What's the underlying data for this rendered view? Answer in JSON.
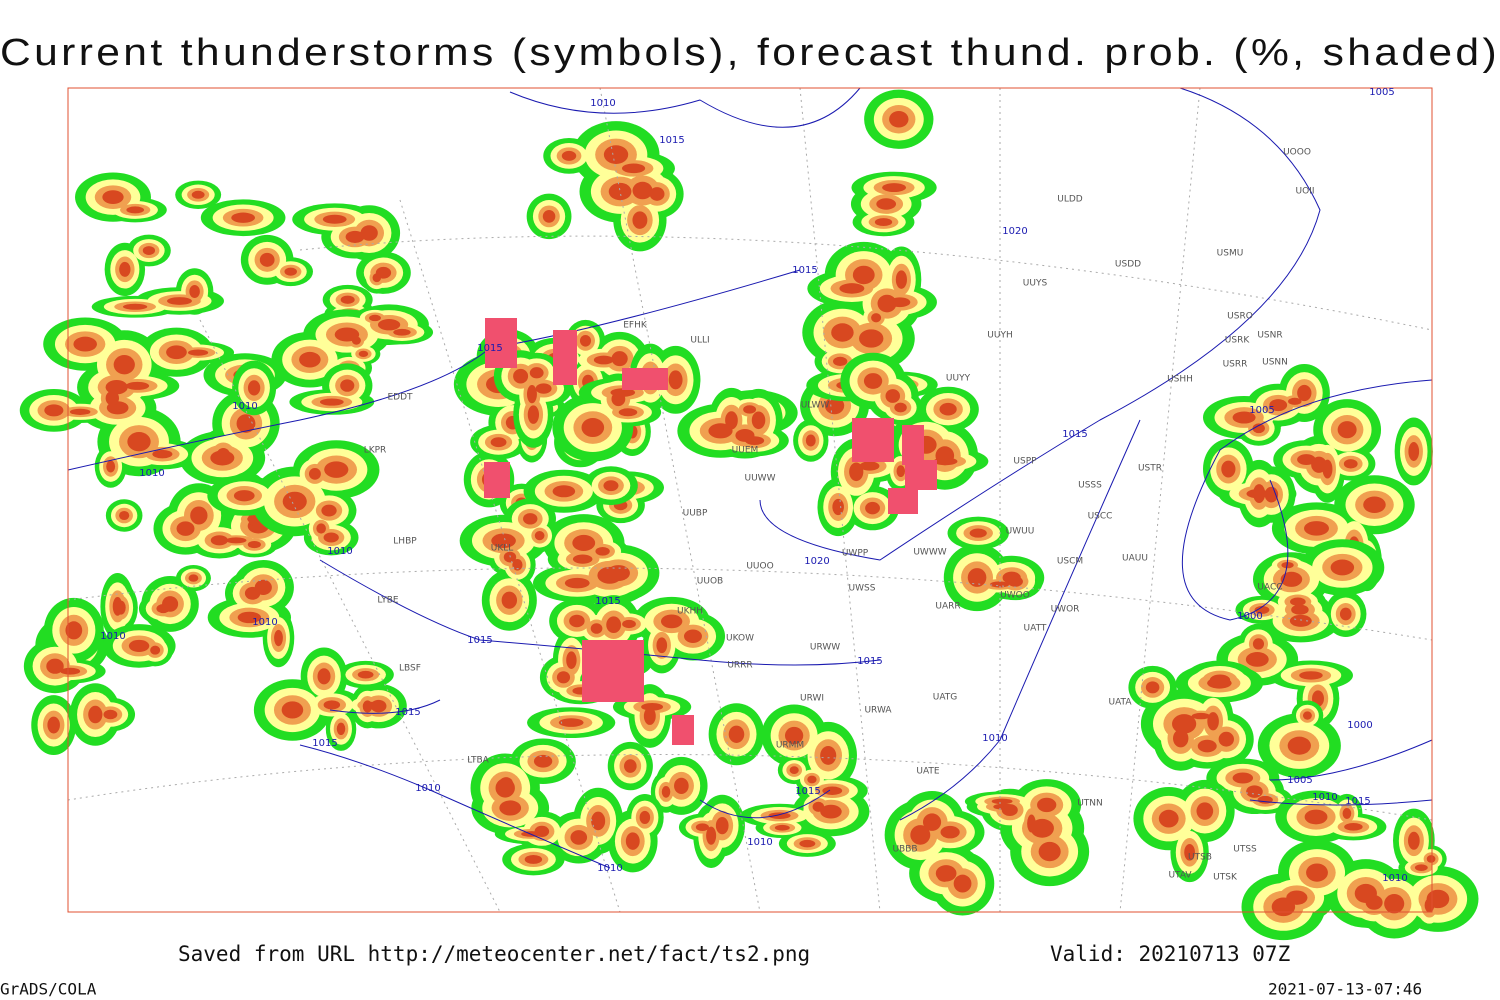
{
  "header": {
    "title": "Current thunderstorms (symbols), forecast thund. prob. (%, shaded)"
  },
  "map": {
    "stations": [
      "EFHK",
      "ULLI",
      "EDDT",
      "LKPR",
      "LHBP",
      "LYBE",
      "LBSF",
      "LTBA",
      "UKLL",
      "UKHH",
      "UKOW",
      "URRR",
      "URWI",
      "URWA",
      "UATG",
      "UATE",
      "UATT",
      "UARR",
      "UWOO",
      "UWOR",
      "UUYY",
      "ULWW",
      "UUEM",
      "UUWW",
      "UUBP",
      "UUOO",
      "UUOB",
      "UWPP",
      "UWSS",
      "URWW",
      "UWUU",
      "USCM",
      "UWWW",
      "USPP",
      "USSS",
      "USCC",
      "USTR",
      "UAUU",
      "UACC",
      "USHH",
      "USRR",
      "USNN",
      "USNR",
      "USRK",
      "USRO",
      "USMU",
      "USDD",
      "ULDD",
      "UUYS",
      "UUYH",
      "UOOO",
      "UOII",
      "UATA",
      "UTAV",
      "UTSK",
      "UTSB",
      "UTSS",
      "UTNN",
      "UBBB",
      "URMM"
    ],
    "isobars": [
      1010,
      1015,
      1015,
      1020,
      1005,
      1015,
      1010,
      1010,
      1010,
      1010,
      1010,
      1015,
      1015,
      1020,
      1015,
      1015,
      1015,
      1010,
      1010,
      1010,
      1015,
      1010,
      1015,
      1005,
      1000,
      1000,
      1005,
      1010,
      1015,
      1010
    ]
  },
  "footer": {
    "source": "Saved from URL http://meteocenter.net/fact/ts2.png",
    "valid": "Valid: 20210713 07Z",
    "software": "GrADS/COLA",
    "timestamp": "2021-07-13-07:46"
  }
}
